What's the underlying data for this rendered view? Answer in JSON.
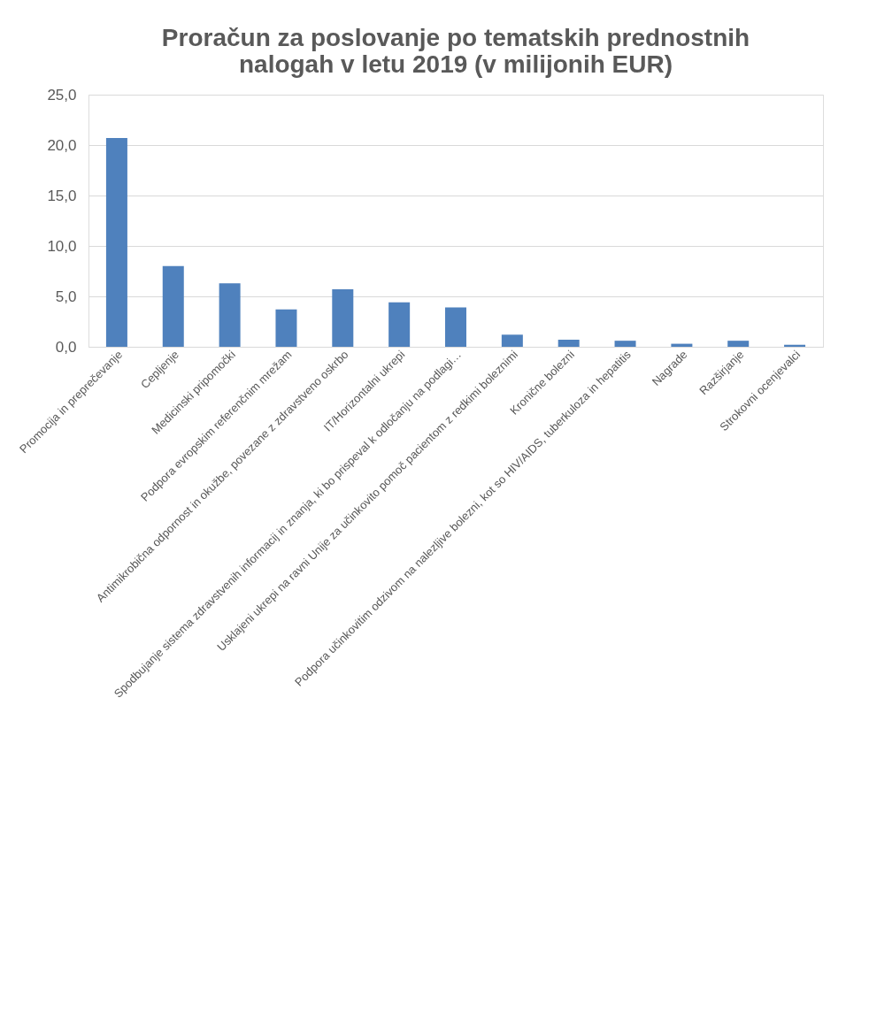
{
  "chart_data": {
    "type": "bar",
    "title": "Proračun za poslovanje po tematskih prednostnih nalogah v letu 2019 (v milijonih EUR)",
    "categories": [
      "Promocija in preprečevanje",
      "Cepljenje",
      "Medicinski pripomočki",
      "Podpora evropskim referenčnim mrežam",
      "Antimikrobična odpornost in okužbe, povezane z zdravstveno oskrbo",
      "IT/Horizontalni ukrepi",
      "Spodbujanje sistema zdravstvenih informacij in znanja, ki bo prispeval k odločanju na podlagi…",
      "Usklajeni ukrepi na ravni Unije za učinkovito pomoč pacientom z redkimi boleznimi",
      "Kronične bolezni",
      "Podpora učinkovitim odzivom na nalezljive bolezni, kot so HIV/AIDS, tuberkuloza in hepatitis",
      "Nagrade",
      "Razširjanje",
      "Strokovni ocenjevalci"
    ],
    "values": [
      20.7,
      8.0,
      6.3,
      3.7,
      5.7,
      4.4,
      3.9,
      1.2,
      0.7,
      0.6,
      0.3,
      0.6,
      0.2
    ],
    "color": "#4f81bd",
    "ylim": [
      0,
      25
    ],
    "yticks": [
      {
        "value": 0,
        "label": "0,0"
      },
      {
        "value": 5,
        "label": "5,0"
      },
      {
        "value": 10,
        "label": "10,0"
      },
      {
        "value": 15,
        "label": "15,0"
      },
      {
        "value": 20,
        "label": "20,0"
      },
      {
        "value": 25,
        "label": "25,0"
      }
    ],
    "grid": "y"
  }
}
